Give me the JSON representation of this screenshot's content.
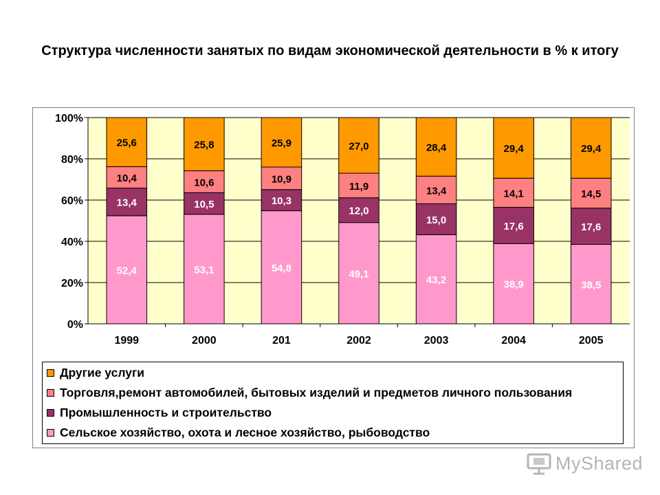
{
  "title": "Структура численности занятых по видам экономической деятельности в % к итогу",
  "watermark": "MyShared",
  "chart_data": {
    "type": "bar",
    "stacked": true,
    "categories": [
      "1999",
      "2000",
      "201",
      "2002",
      "2003",
      "2004",
      "2005"
    ],
    "series": [
      {
        "name": "Сельское хозяйство, охота и лесное хозяйство, рыбоводство",
        "color": "#ff99cc",
        "label_color": "#ffffff",
        "values": [
          52.4,
          53.1,
          54.8,
          49.1,
          43.2,
          38.9,
          38.5
        ],
        "labels": [
          "52,4",
          "53,1",
          "54,8",
          "49,1",
          "43,2",
          "38,9",
          "38,5"
        ]
      },
      {
        "name": "Промышленность и строительство",
        "color": "#993366",
        "label_color": "#ffffff",
        "values": [
          13.4,
          10.5,
          10.3,
          12.0,
          15.0,
          17.6,
          17.6
        ],
        "labels": [
          "13,4",
          "10,5",
          "10,3",
          "12,0",
          "15,0",
          "17,6",
          "17,6"
        ]
      },
      {
        "name": "Торговля,ремонт автомобилей, бытовых изделий и предметов личного пользования",
        "color": "#ff8080",
        "label_color": "#000000",
        "values": [
          10.4,
          10.6,
          10.9,
          11.9,
          13.4,
          14.1,
          14.5
        ],
        "labels": [
          "10,4",
          "10,6",
          "10,9",
          "11,9",
          "13,4",
          "14,1",
          "14,5"
        ]
      },
      {
        "name": "Другие услуги",
        "color": "#ff9900",
        "label_color": "#000000",
        "values": [
          25.6,
          25.8,
          25.9,
          27.0,
          28.4,
          29.4,
          29.4
        ],
        "labels": [
          "25,6",
          "25,8",
          "25,9",
          "27,0",
          "28,4",
          "29,4",
          "29,4"
        ]
      }
    ],
    "yticks": [
      "0%",
      "20%",
      "40%",
      "60%",
      "80%",
      "100%"
    ],
    "ylim": [
      0,
      100
    ],
    "grid": true,
    "plot_background": "#ffffcc",
    "legend_position": "bottom"
  },
  "legend": [
    {
      "label": "Другие услуги",
      "color": "#ff9900"
    },
    {
      "label": "Торговля,ремонт автомобилей, бытовых изделий и предметов личного пользования",
      "color": "#ff8080"
    },
    {
      "label": "Промышленность и строительство",
      "color": "#993366"
    },
    {
      "label": "Сельское хозяйство, охота и лесное хозяйство, рыбоводство",
      "color": "#ff99cc"
    }
  ]
}
